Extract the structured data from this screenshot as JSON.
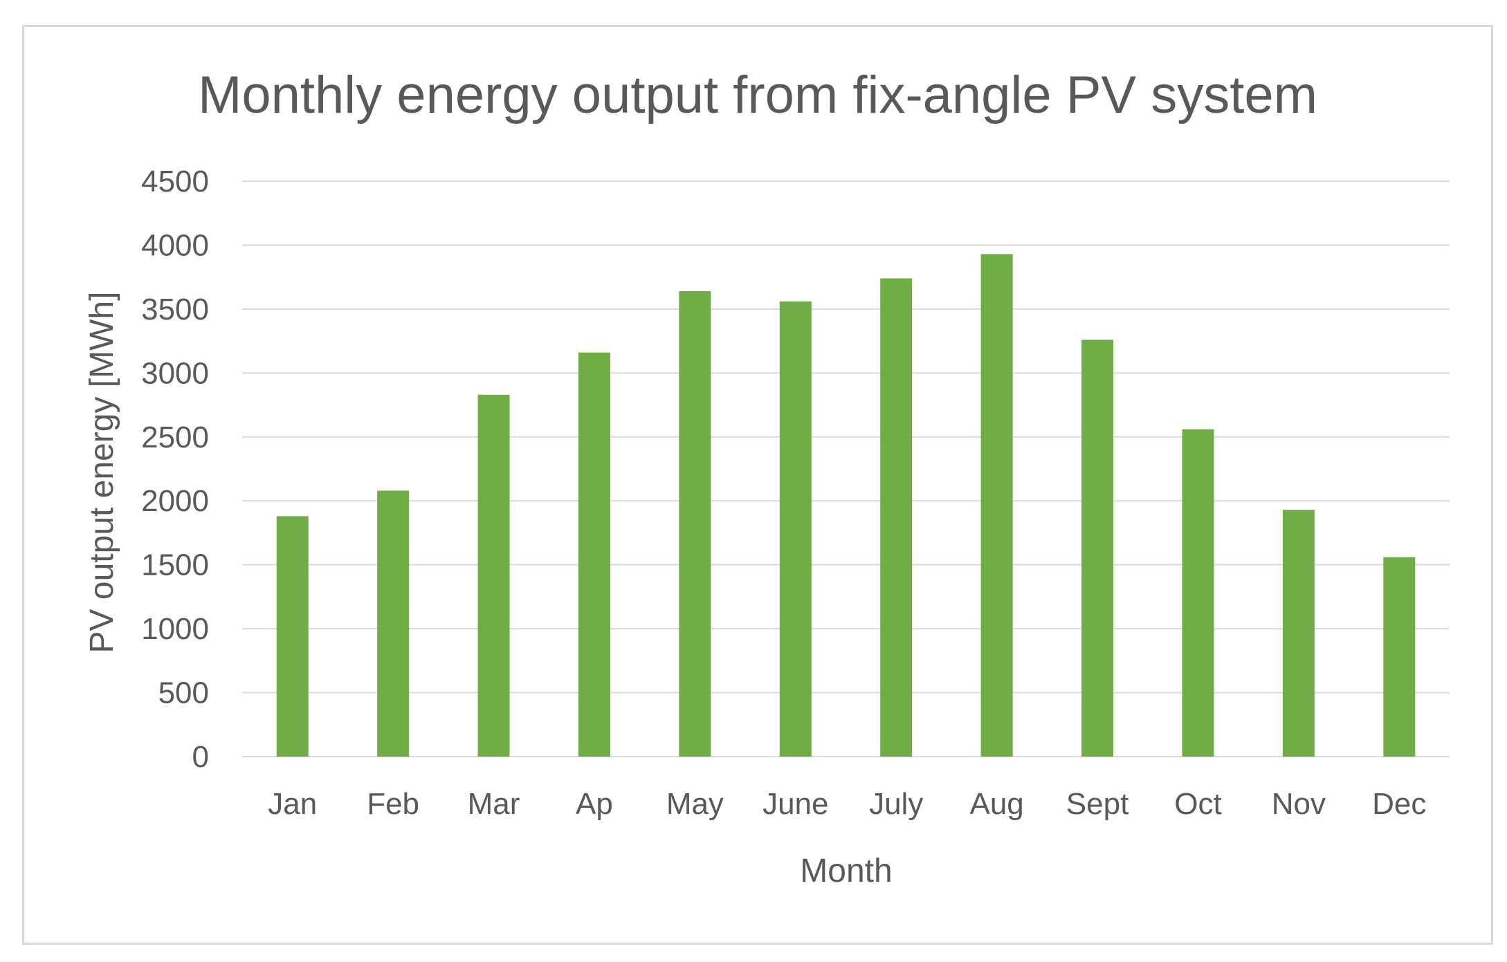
{
  "chart_data": {
    "type": "bar",
    "title": "Monthly energy output from fix-angle PV system",
    "xlabel": "Month",
    "ylabel": "PV output energy  [MWh]",
    "categories": [
      "Jan",
      "Feb",
      "Mar",
      "Ap",
      "May",
      "June",
      "July",
      "Aug",
      "Sept",
      "Oct",
      "Nov",
      "Dec"
    ],
    "series": [
      {
        "values": [
          1880,
          2080,
          2830,
          3160,
          3640,
          3560,
          3740,
          3930,
          3260,
          2560,
          1930,
          1560
        ],
        "color": "#70ad47"
      }
    ],
    "ylim": [
      0,
      4500
    ],
    "yticks": [
      "0",
      "500",
      "1000",
      "1500",
      "2000",
      "2500",
      "3000",
      "3500",
      "4000",
      "4500"
    ],
    "grid": true,
    "legend": "none"
  }
}
